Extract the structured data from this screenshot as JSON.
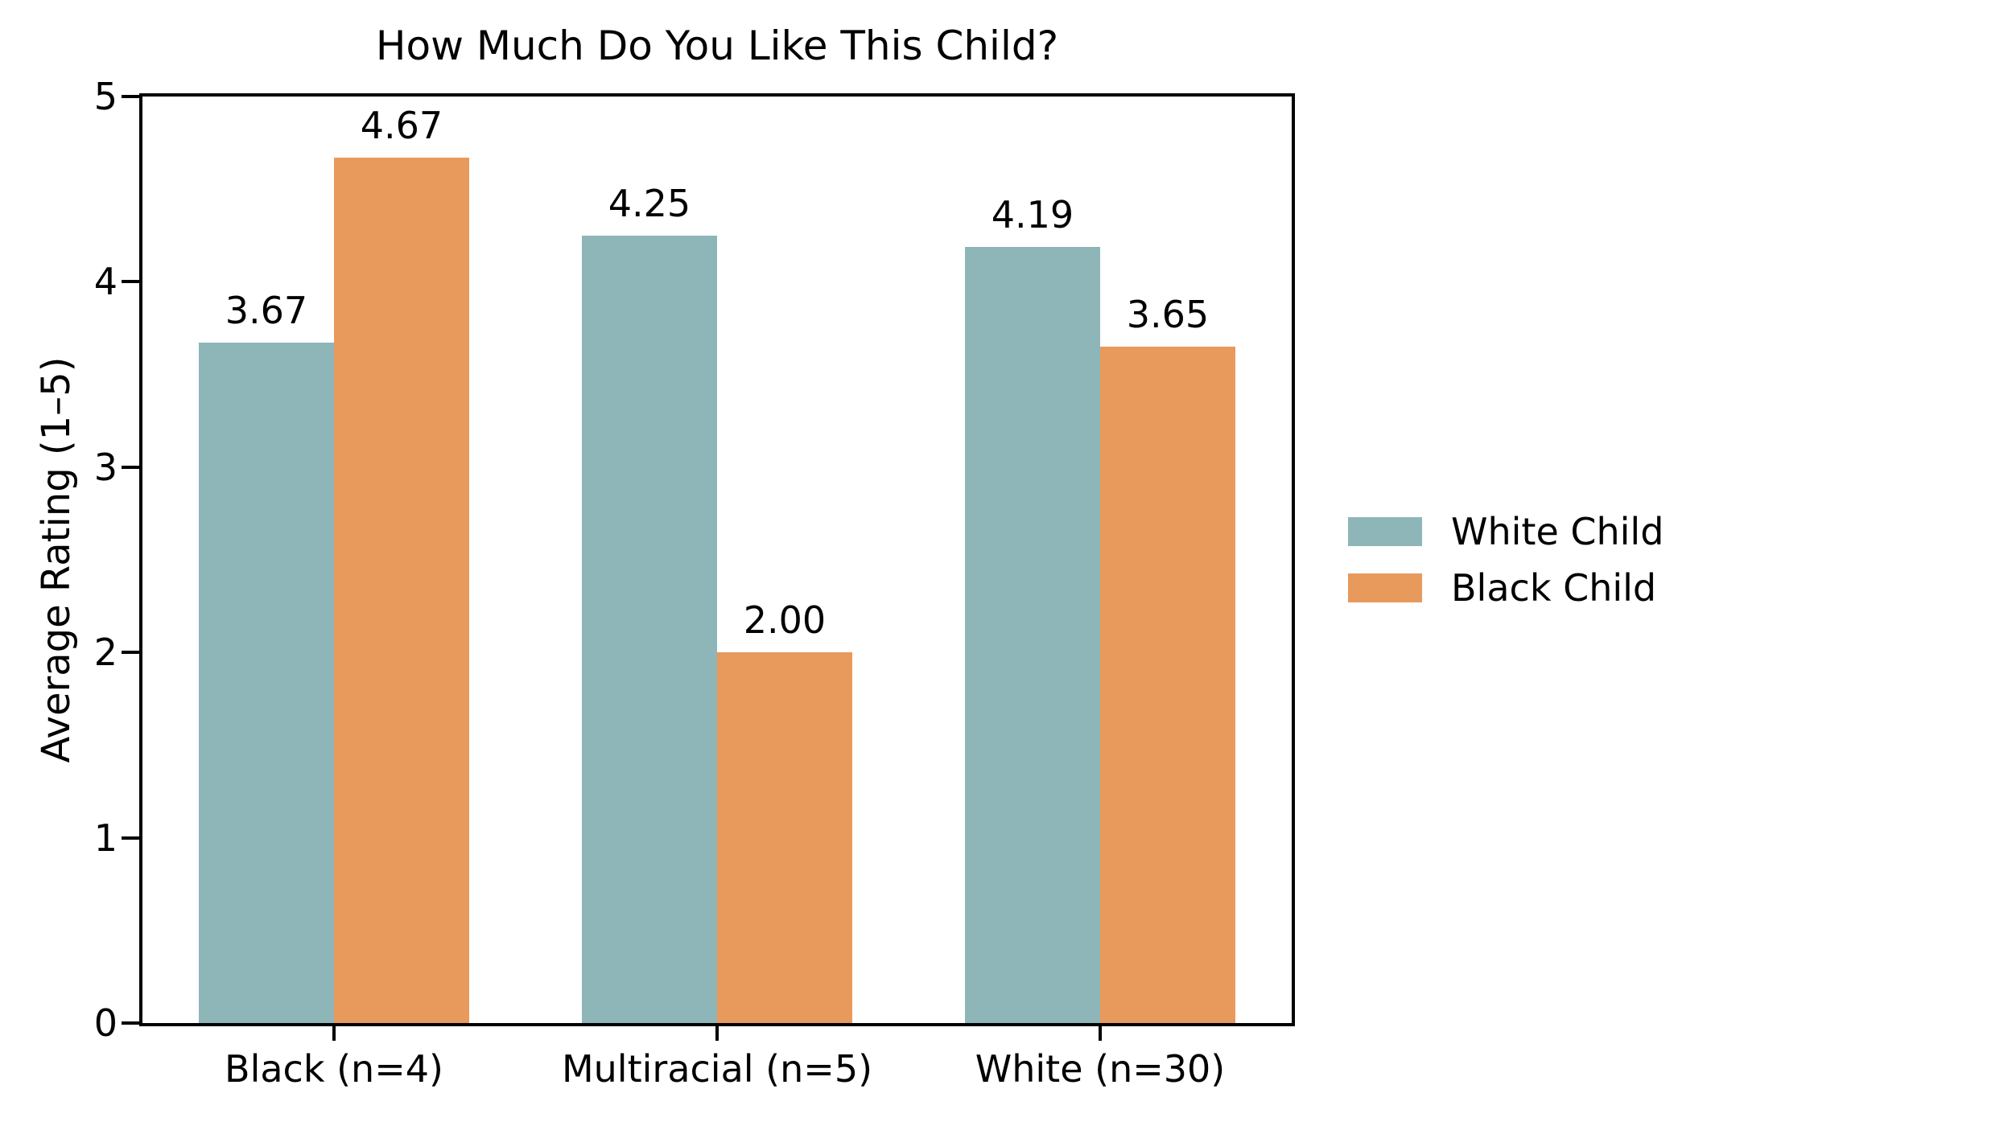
{
  "chart_data": {
    "type": "bar",
    "title": "How Much Do You Like This Child?",
    "xlabel": "",
    "ylabel": "Average Rating (1–5)",
    "categories": [
      "Black (n=4)",
      "Multiracial (n=5)",
      "White (n=30)"
    ],
    "series": [
      {
        "name": "White Child",
        "color": "#8eb6b8",
        "values": [
          3.67,
          4.25,
          4.19
        ],
        "value_labels": [
          "3.67",
          "4.25",
          "4.19"
        ]
      },
      {
        "name": "Black Child",
        "color": "#e8995c",
        "values": [
          4.67,
          2.0,
          3.65
        ],
        "value_labels": [
          "4.67",
          "2.00",
          "3.65"
        ]
      }
    ],
    "ylim": [
      0,
      5
    ],
    "yticks": [
      "0",
      "1",
      "2",
      "3",
      "4",
      "5"
    ],
    "grid": false,
    "legend_position": "right",
    "legend_frame": false
  },
  "colors": {
    "axis": "#000000",
    "text": "#000000",
    "background": "#ffffff"
  }
}
